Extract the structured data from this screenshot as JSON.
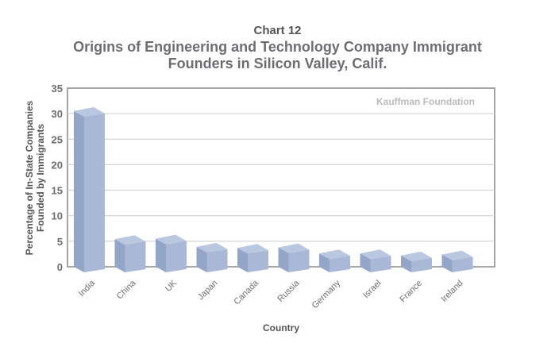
{
  "chart_data": {
    "type": "bar",
    "label": "Chart 12",
    "title": "Origins of Engineering and Technology Company Immigrant Founders in Silicon Valley, Calif.",
    "title_lines": [
      "Origins of Engineering and Technology Company Immigrant",
      "Founders in Silicon Valley, Calif."
    ],
    "source": "Kauffman Foundation",
    "xlabel": "Country",
    "ylabel_lines": [
      "Percentage of In-State Companies",
      "Founded by Immigrants"
    ],
    "categories": [
      "India",
      "China",
      "UK",
      "Japan",
      "Canada",
      "Russia",
      "Germany",
      "Israel",
      "France",
      "Ireland"
    ],
    "values": [
      30.5,
      5.4,
      5.5,
      3.9,
      3.7,
      3.8,
      2.6,
      2.6,
      2.2,
      2.4
    ],
    "ylim": [
      0,
      35
    ],
    "yticks": [
      0,
      5,
      10,
      15,
      20,
      25,
      30,
      35
    ],
    "grid": true,
    "bar_color": "#a9b8d6",
    "bar_side_color": "#93a6c8",
    "bar_top_color": "#bac7e0"
  }
}
